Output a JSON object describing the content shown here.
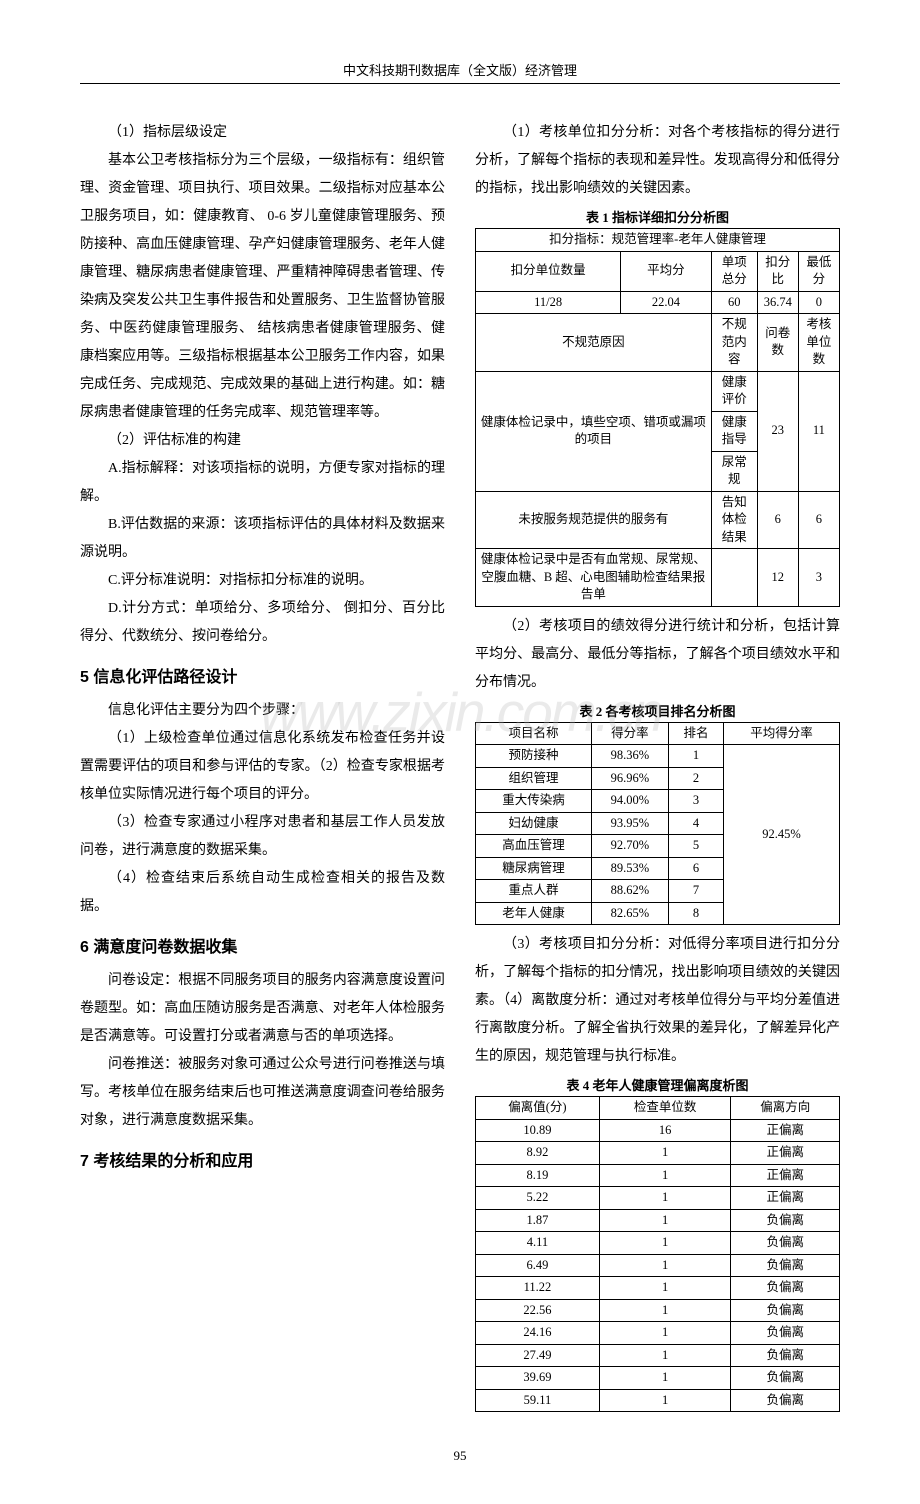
{
  "header": "中文科技期刊数据库（全文版）经济管理",
  "page_number": "95",
  "watermark": "www.zixin.com.cn",
  "left_column": {
    "p1": "（1）指标层级设定",
    "p2": "基本公卫考核指标分为三个层级，一级指标有：组织管理、资金管理、项目执行、项目效果。二级指标对应基本公卫服务项目，如：健康教育、 0-6 岁儿童健康管理服务、预防接种、高血压健康管理、孕产妇健康管理服务、老年人健康管理、糖尿病患者健康管理、严重精神障碍患者管理、传染病及突发公共卫生事件报告和处置服务、卫生监督协管服务、中医药健康管理服务、 结核病患者健康管理服务、健康档案应用等。三级指标根据基本公卫服务工作内容，如果完成任务、完成规范、完成效果的基础上进行构建。如：糖尿病患者健康管理的任务完成率、规范管理率等。",
    "p3": "（2）评估标准的构建",
    "p4": "A.指标解释：对该项指标的说明，方便专家对指标的理解。",
    "p5": "B.评估数据的来源：该项指标评估的具体材料及数据来源说明。",
    "p6": "C.评分标准说明：对指标扣分标准的说明。",
    "p7": "D.计分方式：单项给分、多项给分、 倒扣分、百分比得分、代数统分、按问卷给分。",
    "h5": "5 信息化评估路径设计",
    "p8": "信息化评估主要分为四个步骤：",
    "p9": "（1）上级检查单位通过信息化系统发布检查任务并设置需要评估的项目和参与评估的专家。（2）检查专家根据考核单位实际情况进行每个项目的评分。",
    "p10": "（3）检查专家通过小程序对患者和基层工作人员发放问卷，进行满意度的数据采集。",
    "p11": "（4）检查结束后系统自动生成检查相关的报告及数据。",
    "h6": "6 满意度问卷数据收集",
    "p12": "问卷设定：根据不同服务项目的服务内容满意度设置问卷题型。如：高血压随访服务是否满意、对老年人体检服务是否满意等。可设置打分或者满意与否的单项选择。",
    "p13": "问卷推送：被服务对象可通过公众号进行问卷推送与填写。考核单位在服务结束后也可推送满意度调查问卷给服务对象，进行满意度数据采集。",
    "h7": "7 考核结果的分析和应用"
  },
  "right_column": {
    "p1": "（1）考核单位扣分分析：对各个考核指标的得分进行分析，了解每个指标的表现和差异性。发现高得分和低得分的指标，找出影响绩效的关键因素。",
    "p2": "（2）考核项目的绩效得分进行统计和分析，包括计算平均分、最高分、最低分等指标，了解各个项目绩效水平和分布情况。",
    "p3": "（3）考核项目扣分分析：对低得分率项目进行扣分分析，了解每个指标的扣分情况，找出影响项目绩效的关键因素。（4）离散度分析：通过对考核单位得分与平均分差值进行离散度分析。了解全省执行效果的差异化，了解差异化产生的原因，规范管理与执行标准。"
  },
  "table1": {
    "caption": "表 1  指标详细扣分分析图",
    "subtitle": "扣分指标：规范管理率-老年人健康管理",
    "header_row": [
      "扣分单位数量",
      "平均分",
      "单项总分",
      "扣分比",
      "最低分"
    ],
    "data_row": [
      "11/28",
      "22.04",
      "60",
      "36.74",
      "0"
    ],
    "section2_header": [
      "不规范原因",
      "不规范内容",
      "问卷数",
      "考核单位数"
    ],
    "rows2": [
      {
        "reason": "健康体检记录中，填些空项、错项或漏项的项目",
        "content": [
          "健康评价",
          "健康指导",
          "尿常规"
        ],
        "count": "23",
        "units": "11"
      },
      {
        "reason": "未按服务规范提供的服务有",
        "content": [
          "告知体检结果"
        ],
        "count": "6",
        "units": "6"
      },
      {
        "reason": "健康体检记录中是否有血常规、尿常规、空腹血糖、B 超、心电图辅助检查结果报告单",
        "content": [
          ""
        ],
        "count": "12",
        "units": "3"
      }
    ]
  },
  "table2": {
    "caption": "表 2  各考核项目排名分析图",
    "headers": [
      "项目名称",
      "得分率",
      "排名",
      "平均得分率"
    ],
    "rows": [
      [
        "预防接种",
        "98.36%",
        "1"
      ],
      [
        "组织管理",
        "96.96%",
        "2"
      ],
      [
        "重大传染病",
        "94.00%",
        "3"
      ],
      [
        "妇幼健康",
        "93.95%",
        "4"
      ],
      [
        "高血压管理",
        "92.70%",
        "5"
      ],
      [
        "糖尿病管理",
        "89.53%",
        "6"
      ],
      [
        "重点人群",
        "88.62%",
        "7"
      ],
      [
        "老年人健康",
        "82.65%",
        "8"
      ]
    ],
    "avg": "92.45%"
  },
  "table4": {
    "caption": "表 4  老年人健康管理偏离度析图",
    "headers": [
      "偏离值(分)",
      "检查单位数",
      "偏离方向"
    ],
    "rows": [
      [
        "10.89",
        "16",
        "正偏离"
      ],
      [
        "8.92",
        "1",
        "正偏离"
      ],
      [
        "8.19",
        "1",
        "正偏离"
      ],
      [
        "5.22",
        "1",
        "正偏离"
      ],
      [
        "1.87",
        "1",
        "负偏离"
      ],
      [
        "4.11",
        "1",
        "负偏离"
      ],
      [
        "6.49",
        "1",
        "负偏离"
      ],
      [
        "11.22",
        "1",
        "负偏离"
      ],
      [
        "22.56",
        "1",
        "负偏离"
      ],
      [
        "24.16",
        "1",
        "负偏离"
      ],
      [
        "27.49",
        "1",
        "负偏离"
      ],
      [
        "39.69",
        "1",
        "负偏离"
      ],
      [
        "59.11",
        "1",
        "负偏离"
      ]
    ]
  },
  "styling": {
    "background_color": "#ffffff",
    "text_color": "#000000",
    "border_color": "#000000",
    "body_fontsize": 14,
    "heading_fontsize": 16,
    "table_fontsize": 12.5,
    "line_height": 2.0,
    "watermark_color": "rgba(180,180,180,0.28)"
  }
}
